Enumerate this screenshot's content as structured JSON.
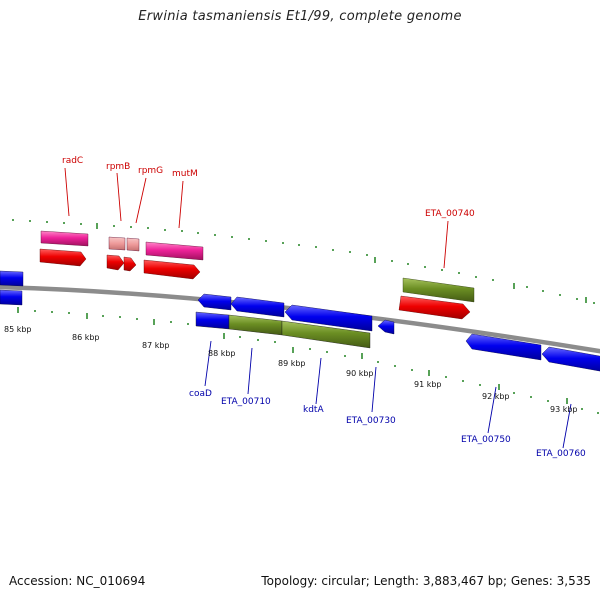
{
  "header": {
    "title": "Erwinia tasmaniensis Et1/99, complete genome"
  },
  "footer": {
    "accession": "Accession: NC_010694",
    "topology": "Topology: circular; Length: 3,883,467 bp; Genes: 3,535"
  },
  "kbp_labels": [
    "85 kbp",
    "86 kbp",
    "87 kbp",
    "88 kbp",
    "89 kbp",
    "90 kbp",
    "91 kbp",
    "92 kbp",
    "93 kbp"
  ],
  "forward_labels": [
    "radC",
    "rpmB",
    "rpmG",
    "mutM",
    "ETA_00740"
  ],
  "reverse_labels": [
    "coaD",
    "ETA_00710",
    "kdtA",
    "ETA_00730",
    "ETA_00750",
    "ETA_00760"
  ],
  "colors": {
    "backbone": "#8c8c8c",
    "forward_cds": "#ee0000",
    "forward_gene": "#ee2299",
    "reverse_cds": "#0000ee",
    "olive": "#6b8e23",
    "tick": "#2e8b2e",
    "forward_label": "#cc0000",
    "reverse_label": "#0000aa"
  }
}
